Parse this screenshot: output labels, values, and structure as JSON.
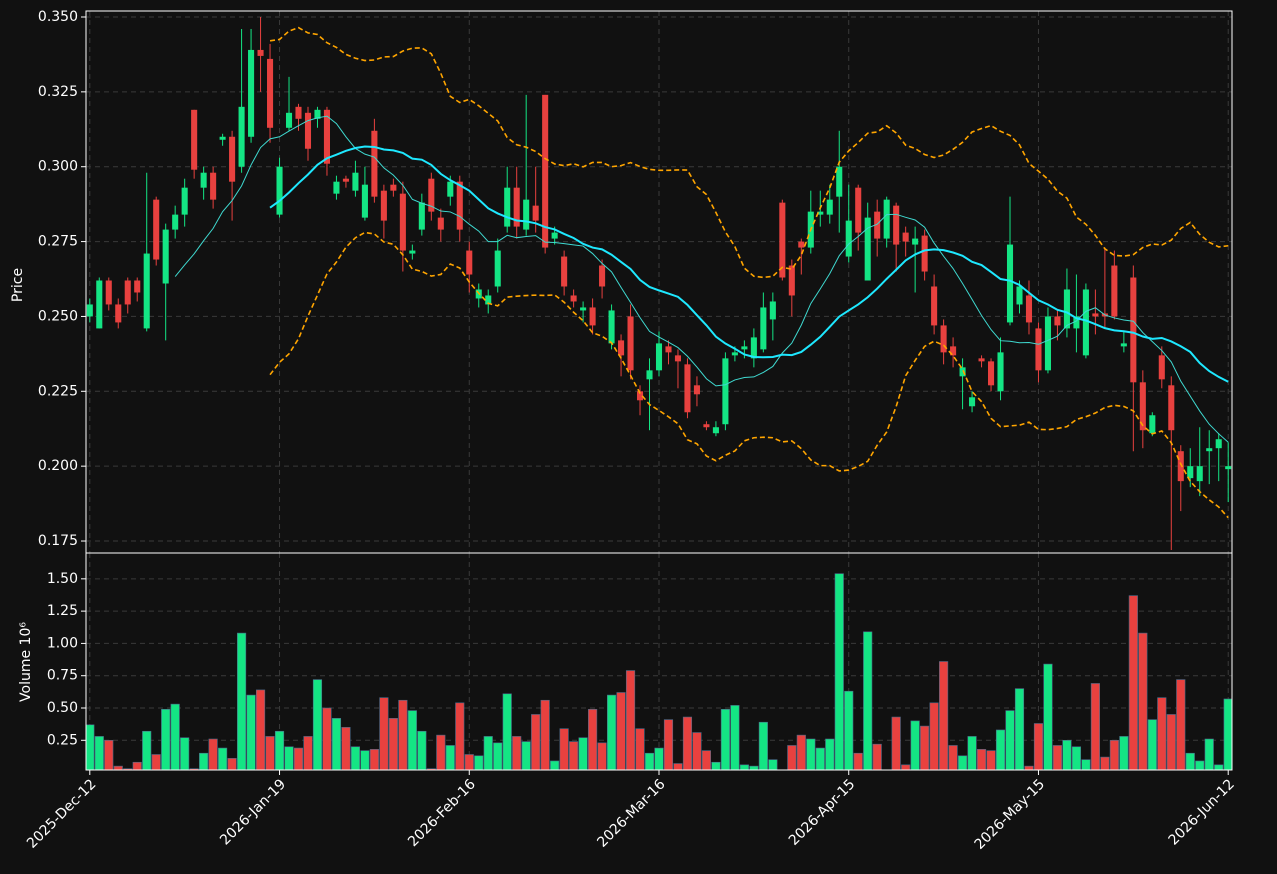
{
  "chart_data": {
    "type": "candlestick",
    "y_label": "Price",
    "volume_label": "Volume  10⁶",
    "xlim": [
      -0.4,
      120.4
    ],
    "xticks": [
      {
        "value": 0,
        "label": "2025-Dec-12"
      },
      {
        "value": 20,
        "label": "2026-Jan-19"
      },
      {
        "value": 40,
        "label": "2026-Feb-16"
      },
      {
        "value": 60,
        "label": "2026-Mar-16"
      },
      {
        "value": 80,
        "label": "2026-Apr-15"
      },
      {
        "value": 100,
        "label": "2026-May-15"
      },
      {
        "value": 120,
        "label": "2026-Jun-12"
      }
    ],
    "ylim": [
      0.171,
      0.352
    ],
    "yticks": [
      {
        "value": 0.175,
        "label": "0.175"
      },
      {
        "value": 0.2,
        "label": "0.200"
      },
      {
        "value": 0.225,
        "label": "0.225"
      },
      {
        "value": 0.25,
        "label": "0.250"
      },
      {
        "value": 0.275,
        "label": "0.275"
      },
      {
        "value": 0.3,
        "label": "0.300"
      },
      {
        "value": 0.325,
        "label": "0.325"
      },
      {
        "value": 0.35,
        "label": "0.350"
      }
    ],
    "volume_ylim": [
      0.02,
      1.7
    ],
    "volume_yticks": [
      {
        "value": 0.25,
        "label": "0.25"
      },
      {
        "value": 0.5,
        "label": "0.50"
      },
      {
        "value": 0.75,
        "label": "0.75"
      },
      {
        "value": 1.0,
        "label": "1.00"
      },
      {
        "value": 1.25,
        "label": "1.25"
      },
      {
        "value": 1.5,
        "label": "1.50"
      }
    ],
    "grid": true,
    "up_color": "#14e584",
    "down_color": "#e8413f",
    "mav": [
      10,
      20
    ],
    "mav_colors": [
      "#3fd9d0",
      "#1ee8ff"
    ],
    "bollinger": {
      "period": 20,
      "std": 2,
      "color": "#ffa500"
    },
    "open": [
      0.25,
      0.246,
      0.262,
      0.254,
      0.262,
      0.262,
      0.246,
      0.289,
      0.261,
      0.279,
      0.284,
      0.319,
      0.293,
      0.298,
      0.309,
      0.31,
      0.3,
      0.31,
      0.339,
      0.336,
      0.284,
      0.313,
      0.32,
      0.318,
      0.316,
      0.319,
      0.291,
      0.296,
      0.292,
      0.283,
      0.312,
      0.292,
      0.294,
      0.291,
      0.271,
      0.279,
      0.296,
      0.283,
      0.29,
      0.295,
      0.272,
      0.256,
      0.254,
      0.26,
      0.28,
      0.293,
      0.279,
      0.287,
      0.324,
      0.276,
      0.27,
      0.257,
      0.252,
      0.253,
      0.267,
      0.241,
      0.242,
      0.25,
      0.225,
      0.229,
      0.232,
      0.24,
      0.237,
      0.234,
      0.227,
      0.214,
      0.211,
      0.214,
      0.237,
      0.239,
      0.236,
      0.239,
      0.249,
      0.288,
      0.267,
      0.275,
      0.273,
      0.284,
      0.284,
      0.29,
      0.27,
      0.293,
      0.262,
      0.285,
      0.276,
      0.287,
      0.278,
      0.274,
      0.277,
      0.26,
      0.247,
      0.24,
      0.23,
      0.22,
      0.236,
      0.235,
      0.225,
      0.248,
      0.254,
      0.257,
      0.246,
      0.232,
      0.25,
      0.246,
      0.246,
      0.237,
      0.251,
      0.251,
      0.267,
      0.24,
      0.263,
      0.228,
      0.211,
      0.237,
      0.227,
      0.205,
      0.196,
      0.195,
      0.205,
      0.206,
      0.199
    ],
    "high": [
      0.256,
      0.263,
      0.263,
      0.256,
      0.263,
      0.263,
      0.298,
      0.29,
      0.281,
      0.287,
      0.296,
      0.319,
      0.3,
      0.3,
      0.311,
      0.312,
      0.346,
      0.346,
      0.35,
      0.341,
      0.303,
      0.33,
      0.321,
      0.32,
      0.32,
      0.32,
      0.297,
      0.297,
      0.302,
      0.3,
      0.316,
      0.294,
      0.296,
      0.295,
      0.274,
      0.291,
      0.298,
      0.286,
      0.297,
      0.297,
      0.275,
      0.261,
      0.259,
      0.276,
      0.3,
      0.3,
      0.324,
      0.3,
      0.324,
      0.28,
      0.272,
      0.259,
      0.255,
      0.256,
      0.269,
      0.254,
      0.244,
      0.254,
      0.227,
      0.236,
      0.245,
      0.242,
      0.239,
      0.236,
      0.23,
      0.215,
      0.215,
      0.238,
      0.24,
      0.242,
      0.246,
      0.258,
      0.258,
      0.289,
      0.269,
      0.276,
      0.292,
      0.292,
      0.294,
      0.312,
      0.294,
      0.294,
      0.288,
      0.289,
      0.29,
      0.288,
      0.28,
      0.28,
      0.279,
      0.264,
      0.249,
      0.243,
      0.236,
      0.225,
      0.237,
      0.236,
      0.243,
      0.29,
      0.262,
      0.262,
      0.248,
      0.253,
      0.252,
      0.266,
      0.264,
      0.261,
      0.259,
      0.273,
      0.272,
      0.245,
      0.267,
      0.232,
      0.218,
      0.24,
      0.23,
      0.207,
      0.206,
      0.213,
      0.212,
      0.211,
      0.208
    ],
    "low": [
      0.248,
      0.246,
      0.252,
      0.246,
      0.251,
      0.255,
      0.245,
      0.267,
      0.242,
      0.276,
      0.28,
      0.296,
      0.289,
      0.286,
      0.307,
      0.282,
      0.298,
      0.308,
      0.325,
      0.308,
      0.283,
      0.312,
      0.312,
      0.302,
      0.313,
      0.297,
      0.289,
      0.293,
      0.29,
      0.282,
      0.288,
      0.276,
      0.29,
      0.265,
      0.269,
      0.277,
      0.282,
      0.275,
      0.287,
      0.275,
      0.258,
      0.253,
      0.251,
      0.258,
      0.278,
      0.276,
      0.277,
      0.278,
      0.271,
      0.274,
      0.257,
      0.253,
      0.248,
      0.244,
      0.256,
      0.239,
      0.23,
      0.229,
      0.217,
      0.212,
      0.23,
      0.234,
      0.226,
      0.216,
      0.22,
      0.212,
      0.21,
      0.212,
      0.235,
      0.236,
      0.233,
      0.238,
      0.242,
      0.262,
      0.25,
      0.264,
      0.271,
      0.28,
      0.281,
      0.278,
      0.268,
      0.272,
      0.262,
      0.27,
      0.273,
      0.265,
      0.27,
      0.258,
      0.262,
      0.244,
      0.234,
      0.233,
      0.219,
      0.218,
      0.233,
      0.225,
      0.222,
      0.247,
      0.251,
      0.244,
      0.228,
      0.231,
      0.242,
      0.243,
      0.238,
      0.236,
      0.244,
      0.246,
      0.249,
      0.238,
      0.205,
      0.206,
      0.21,
      0.226,
      0.172,
      0.185,
      0.193,
      0.19,
      0.194,
      0.195,
      0.188
    ],
    "close": [
      0.254,
      0.262,
      0.254,
      0.248,
      0.254,
      0.258,
      0.271,
      0.269,
      0.279,
      0.284,
      0.293,
      0.299,
      0.298,
      0.289,
      0.31,
      0.295,
      0.32,
      0.339,
      0.337,
      0.313,
      0.3,
      0.318,
      0.316,
      0.306,
      0.319,
      0.301,
      0.295,
      0.295,
      0.298,
      0.294,
      0.29,
      0.282,
      0.292,
      0.272,
      0.272,
      0.288,
      0.285,
      0.279,
      0.295,
      0.279,
      0.264,
      0.259,
      0.257,
      0.272,
      0.293,
      0.28,
      0.289,
      0.282,
      0.273,
      0.278,
      0.26,
      0.255,
      0.253,
      0.247,
      0.26,
      0.252,
      0.237,
      0.232,
      0.222,
      0.232,
      0.241,
      0.238,
      0.235,
      0.218,
      0.224,
      0.213,
      0.213,
      0.236,
      0.238,
      0.24,
      0.243,
      0.253,
      0.255,
      0.263,
      0.257,
      0.273,
      0.285,
      0.285,
      0.289,
      0.3,
      0.282,
      0.278,
      0.283,
      0.276,
      0.289,
      0.274,
      0.275,
      0.276,
      0.265,
      0.247,
      0.238,
      0.237,
      0.233,
      0.223,
      0.235,
      0.227,
      0.238,
      0.274,
      0.26,
      0.248,
      0.232,
      0.25,
      0.247,
      0.259,
      0.25,
      0.259,
      0.25,
      0.25,
      0.25,
      0.241,
      0.228,
      0.212,
      0.217,
      0.229,
      0.212,
      0.195,
      0.2,
      0.2,
      0.206,
      0.209,
      0.2
    ],
    "volume": [
      0.37,
      0.28,
      0.25,
      0.05,
      0.03,
      0.08,
      0.32,
      0.14,
      0.49,
      0.53,
      0.27,
      0.03,
      0.15,
      0.26,
      0.19,
      0.11,
      1.08,
      0.6,
      0.64,
      0.28,
      0.32,
      0.2,
      0.19,
      0.28,
      0.72,
      0.5,
      0.42,
      0.35,
      0.2,
      0.17,
      0.18,
      0.58,
      0.42,
      0.56,
      0.48,
      0.32,
      0.03,
      0.29,
      0.21,
      0.54,
      0.14,
      0.13,
      0.28,
      0.23,
      0.61,
      0.28,
      0.24,
      0.45,
      0.56,
      0.09,
      0.34,
      0.24,
      0.27,
      0.49,
      0.23,
      0.6,
      0.62,
      0.79,
      0.34,
      0.15,
      0.19,
      0.41,
      0.07,
      0.43,
      0.31,
      0.17,
      0.08,
      0.49,
      0.52,
      0.06,
      0.05,
      0.39,
      0.1,
      0.02,
      0.21,
      0.29,
      0.26,
      0.19,
      0.26,
      1.54,
      0.63,
      0.15,
      1.09,
      0.22,
      0.01,
      0.43,
      0.06,
      0.4,
      0.36,
      0.54,
      0.86,
      0.21,
      0.13,
      0.28,
      0.18,
      0.17,
      0.33,
      0.48,
      0.65,
      0.05,
      0.38,
      0.84,
      0.21,
      0.25,
      0.2,
      0.1,
      0.69,
      0.12,
      0.25,
      0.28,
      1.37,
      1.08,
      0.41,
      0.58,
      0.45,
      0.72,
      0.15,
      0.09,
      0.26,
      0.06,
      0.57
    ]
  }
}
